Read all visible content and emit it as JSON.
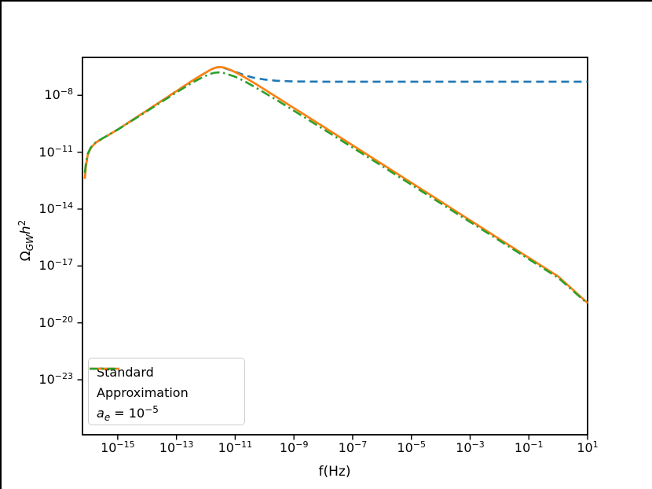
{
  "window": {
    "background": "#ffffff",
    "border_color": "#000000"
  },
  "chart_data": {
    "type": "line",
    "title": "",
    "xlabel": "f(Hz)",
    "ylabel_math": {
      "omega": "Ω",
      "sub": "GW",
      "h": "h",
      "sup": "2"
    },
    "x_axis": {
      "scale": "log",
      "min_exp": -16.2,
      "max_exp": 1.0,
      "tick_base": "10",
      "tick_exponents": [
        -15,
        -13,
        -11,
        -9,
        -7,
        -5,
        -3,
        -1,
        1
      ]
    },
    "y_axis": {
      "scale": "log",
      "min_exp": -25.9,
      "max_exp": -6.0,
      "tick_base": "10",
      "tick_exponents": [
        -8,
        -11,
        -14,
        -17,
        -20,
        -23
      ]
    },
    "grid": false,
    "frame_color": "#000000",
    "legend": {
      "position": "lower left",
      "entries": [
        {
          "label": "Standard",
          "color": "#1f77b4",
          "style": "dashed"
        },
        {
          "label": "Approximation",
          "color": "#ff7f0e",
          "style": "solid"
        },
        {
          "label_math": {
            "pre": "a",
            "sub": "e",
            "mid": " = 10",
            "sup": "−5"
          },
          "color": "#2ca02c",
          "style": "dashdot"
        }
      ]
    },
    "series": [
      {
        "name": "Standard",
        "color": "#1f77b4",
        "style": "dashed",
        "points_log10": [
          [
            -16.12,
            -12.4
          ],
          [
            -16.08,
            -11.7
          ],
          [
            -16.02,
            -11.15
          ],
          [
            -15.92,
            -10.78
          ],
          [
            -15.75,
            -10.5
          ],
          [
            -15.5,
            -10.26
          ],
          [
            -15.0,
            -9.8
          ],
          [
            -14.0,
            -8.8
          ],
          [
            -13.0,
            -7.78
          ],
          [
            -12.5,
            -7.27
          ],
          [
            -12.2,
            -6.98
          ],
          [
            -12.0,
            -6.8
          ],
          [
            -11.85,
            -6.66
          ],
          [
            -11.72,
            -6.57
          ],
          [
            -11.6,
            -6.52
          ],
          [
            -11.45,
            -6.53
          ],
          [
            -11.25,
            -6.62
          ],
          [
            -11.0,
            -6.76
          ],
          [
            -10.7,
            -6.93
          ],
          [
            -10.4,
            -7.06
          ],
          [
            -10.0,
            -7.17
          ],
          [
            -9.6,
            -7.23
          ],
          [
            -9.0,
            -7.27
          ],
          [
            -8.0,
            -7.28
          ],
          [
            -6.0,
            -7.28
          ],
          [
            -4.0,
            -7.28
          ],
          [
            -2.0,
            -7.28
          ],
          [
            0.0,
            -7.28
          ],
          [
            1.0,
            -7.28
          ]
        ]
      },
      {
        "name": "Approximation",
        "color": "#ff7f0e",
        "style": "solid",
        "points_log10": [
          [
            -16.12,
            -12.4
          ],
          [
            -16.08,
            -11.7
          ],
          [
            -16.02,
            -11.15
          ],
          [
            -15.92,
            -10.78
          ],
          [
            -15.75,
            -10.5
          ],
          [
            -15.5,
            -10.26
          ],
          [
            -15.0,
            -9.8
          ],
          [
            -14.0,
            -8.8
          ],
          [
            -13.0,
            -7.78
          ],
          [
            -12.5,
            -7.27
          ],
          [
            -12.2,
            -6.98
          ],
          [
            -12.0,
            -6.8
          ],
          [
            -11.85,
            -6.66
          ],
          [
            -11.72,
            -6.57
          ],
          [
            -11.6,
            -6.52
          ],
          [
            -11.48,
            -6.51
          ],
          [
            -11.35,
            -6.55
          ],
          [
            -11.2,
            -6.63
          ],
          [
            -11.0,
            -6.78
          ],
          [
            -10.7,
            -7.03
          ],
          [
            -10.3,
            -7.4
          ],
          [
            -9.5,
            -8.18
          ],
          [
            -8.0,
            -9.65
          ],
          [
            -6.0,
            -11.62
          ],
          [
            -4.0,
            -13.6
          ],
          [
            -2.0,
            -15.58
          ],
          [
            0.0,
            -17.55
          ],
          [
            1.0,
            -18.95
          ]
        ]
      },
      {
        "name": "a_e = 1e-5",
        "color": "#2ca02c",
        "style": "dashdot",
        "points_log10": [
          [
            -16.12,
            -12.08
          ],
          [
            -16.08,
            -11.55
          ],
          [
            -16.02,
            -11.08
          ],
          [
            -15.92,
            -10.75
          ],
          [
            -15.75,
            -10.48
          ],
          [
            -15.5,
            -10.25
          ],
          [
            -15.0,
            -9.81
          ],
          [
            -14.0,
            -8.83
          ],
          [
            -13.0,
            -7.85
          ],
          [
            -12.5,
            -7.37
          ],
          [
            -12.2,
            -7.12
          ],
          [
            -12.0,
            -6.97
          ],
          [
            -11.85,
            -6.87
          ],
          [
            -11.7,
            -6.81
          ],
          [
            -11.55,
            -6.79
          ],
          [
            -11.4,
            -6.82
          ],
          [
            -11.25,
            -6.89
          ],
          [
            -11.0,
            -7.02
          ],
          [
            -10.7,
            -7.24
          ],
          [
            -10.3,
            -7.59
          ],
          [
            -9.5,
            -8.33
          ],
          [
            -8.0,
            -9.78
          ],
          [
            -6.0,
            -11.73
          ],
          [
            -4.0,
            -13.7
          ],
          [
            -2.0,
            -15.66
          ],
          [
            0.0,
            -17.62
          ],
          [
            1.0,
            -18.99
          ]
        ]
      }
    ]
  }
}
